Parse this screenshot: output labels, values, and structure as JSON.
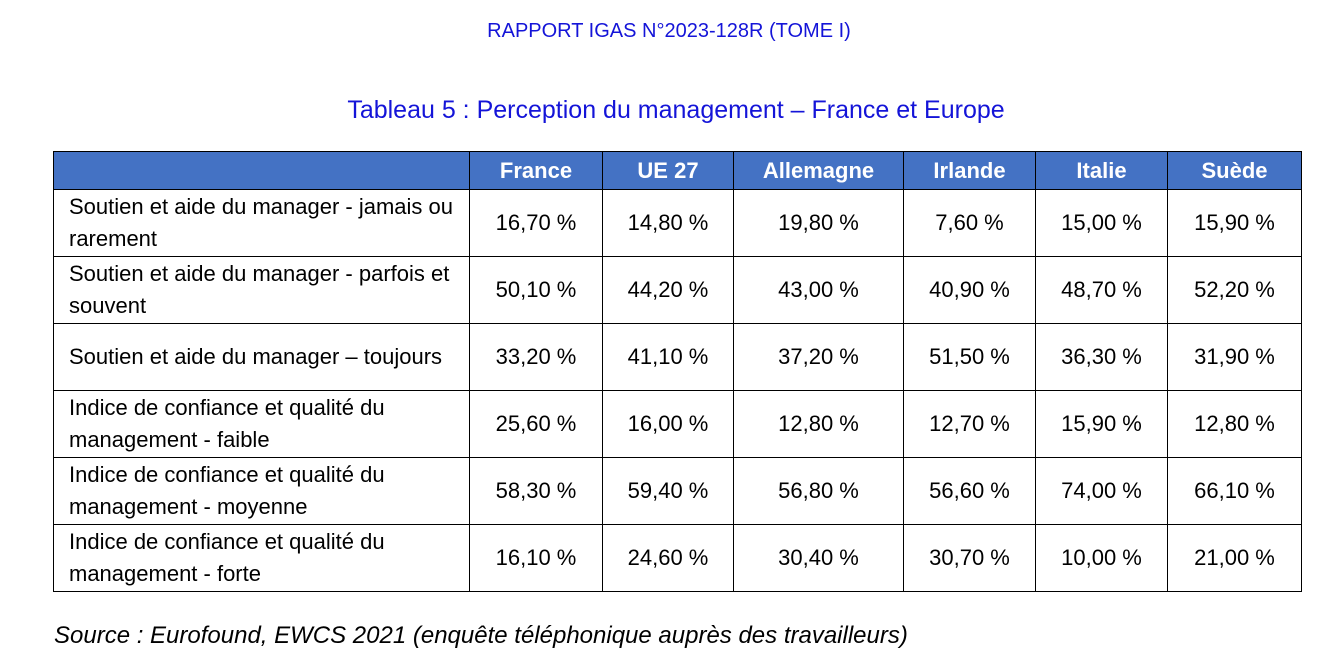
{
  "header": {
    "title": "RAPPORT IGAS N°2023-128R (TOME I)"
  },
  "caption": "Tableau 5 :  Perception du management – France et Europe",
  "table": {
    "columns": [
      "",
      "France",
      "UE 27",
      "Allemagne",
      "Irlande",
      "Italie",
      "Suède"
    ],
    "rows": [
      [
        "Soutien et aide du manager - jamais ou rarement",
        "16,70 %",
        "14,80 %",
        "19,80 %",
        "7,60 %",
        "15,00 %",
        "15,90 %"
      ],
      [
        "Soutien et aide du manager - parfois et souvent",
        "50,10 %",
        "44,20 %",
        "43,00 %",
        "40,90 %",
        "48,70 %",
        "52,20 %"
      ],
      [
        "Soutien et aide du manager – toujours",
        "33,20 %",
        "41,10 %",
        "37,20 %",
        "51,50 %",
        "36,30 %",
        "31,90 %"
      ],
      [
        "Indice de confiance et qualité du management - faible",
        "25,60 %",
        "16,00 %",
        "12,80 %",
        "12,70 %",
        "15,90 %",
        "12,80 %"
      ],
      [
        "Indice de confiance et qualité du management - moyenne",
        "58,30 %",
        "59,40 %",
        "56,80 %",
        "56,60 %",
        "74,00 %",
        "66,10 %"
      ],
      [
        "Indice de confiance et qualité du management - forte",
        "16,10 %",
        "24,60 %",
        "30,40 %",
        "30,70 %",
        "10,00 %",
        "21,00 %"
      ]
    ]
  },
  "source": "Source :  Eurofound, EWCS 2021 (enquête téléphonique auprès des travailleurs)"
}
